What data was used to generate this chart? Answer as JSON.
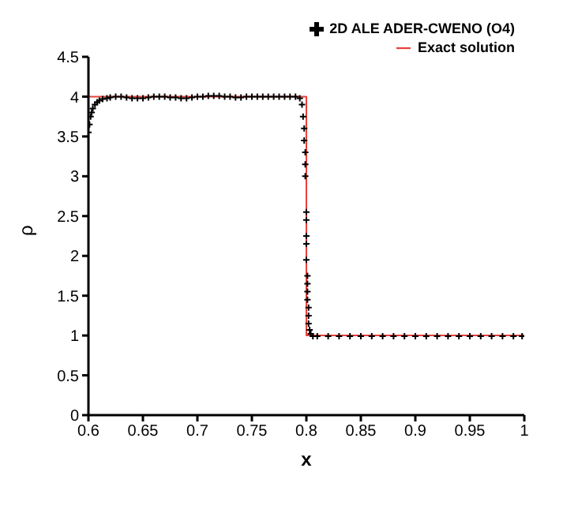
{
  "chart_data": {
    "type": "scatter",
    "xlabel": "x",
    "ylabel": "ρ",
    "xlim": [
      0.6,
      1
    ],
    "xticks": [
      0.6,
      0.65,
      0.7,
      0.75,
      0.8,
      0.85,
      0.9,
      0.95,
      1
    ],
    "ylim": [
      0,
      4.5
    ],
    "yticks": [
      0,
      0.5,
      1,
      1.5,
      2,
      2.5,
      3,
      3.5,
      4,
      4.5
    ],
    "grid": false,
    "legend": "top right",
    "series": [
      {
        "name": "2D ALE ADER-CWENO (O4)",
        "color": "#000000",
        "marker": "cross",
        "x": [
          0.6,
          0.601,
          0.602,
          0.603,
          0.604,
          0.606,
          0.608,
          0.61,
          0.613,
          0.617,
          0.62,
          0.625,
          0.63,
          0.635,
          0.64,
          0.645,
          0.65,
          0.655,
          0.66,
          0.665,
          0.67,
          0.675,
          0.68,
          0.685,
          0.69,
          0.695,
          0.7,
          0.705,
          0.71,
          0.715,
          0.72,
          0.725,
          0.73,
          0.735,
          0.74,
          0.745,
          0.75,
          0.755,
          0.76,
          0.765,
          0.77,
          0.775,
          0.78,
          0.785,
          0.79,
          0.794,
          0.796,
          0.797,
          0.798,
          0.798,
          0.799,
          0.799,
          0.799,
          0.8,
          0.8,
          0.8,
          0.8,
          0.8,
          0.801,
          0.801,
          0.801,
          0.801,
          0.802,
          0.802,
          0.802,
          0.803,
          0.804,
          0.806,
          0.81,
          0.82,
          0.83,
          0.84,
          0.85,
          0.86,
          0.87,
          0.88,
          0.89,
          0.9,
          0.91,
          0.92,
          0.93,
          0.94,
          0.95,
          0.96,
          0.97,
          0.98,
          0.99,
          0.998
        ],
        "values": [
          3.55,
          3.65,
          3.75,
          3.8,
          3.85,
          3.9,
          3.93,
          3.95,
          3.97,
          3.98,
          3.99,
          4.0,
          4.0,
          3.99,
          3.98,
          3.98,
          3.98,
          3.99,
          4.0,
          4.0,
          4.0,
          3.99,
          3.99,
          3.98,
          3.98,
          3.99,
          4.0,
          4.0,
          4.01,
          4.01,
          4.01,
          4.0,
          4.0,
          3.99,
          3.99,
          4.0,
          4.0,
          4.0,
          4.0,
          4.0,
          4.0,
          4.0,
          4.0,
          4.0,
          4.0,
          3.98,
          3.9,
          3.75,
          3.6,
          3.45,
          3.3,
          3.15,
          3.0,
          2.55,
          2.45,
          2.25,
          2.15,
          1.95,
          1.75,
          1.65,
          1.55,
          1.45,
          1.35,
          1.25,
          1.15,
          1.07,
          1.02,
          0.99,
          0.99,
          0.99,
          0.99,
          0.99,
          0.99,
          0.99,
          0.99,
          0.99,
          0.99,
          0.99,
          0.99,
          0.99,
          0.99,
          0.99,
          0.99,
          0.99,
          0.99,
          0.99,
          0.99,
          0.99
        ]
      },
      {
        "name": "Exact solution",
        "type": "line",
        "color": "#e8403a",
        "marker": "none",
        "line_style": "solid",
        "x": [
          0.6,
          0.8,
          0.8,
          1
        ],
        "values": [
          4,
          4,
          1,
          1
        ]
      }
    ]
  }
}
